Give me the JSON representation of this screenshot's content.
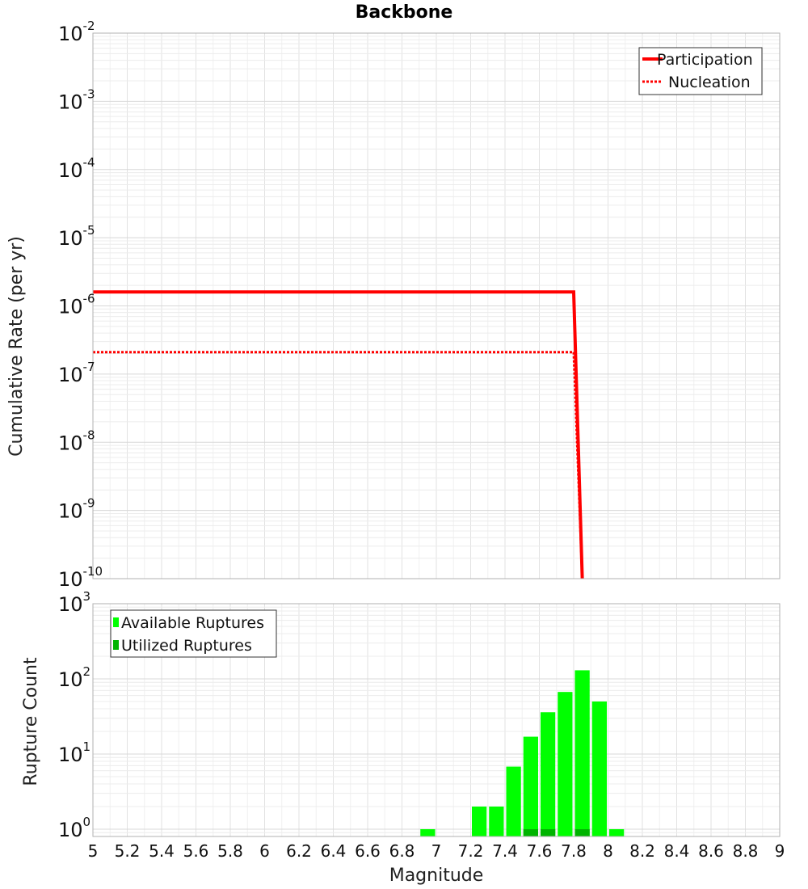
{
  "title": "Backbone",
  "chart_data": [
    {
      "type": "line",
      "title": "Backbone",
      "xlabel": "Magnitude",
      "ylabel": "Cumulative Rate (per yr)",
      "yscale": "log",
      "xlim": [
        5,
        9
      ],
      "ylim": [
        1e-10,
        0.01
      ],
      "ytick_labels": [
        {
          "base": "10",
          "exp": "-10",
          "value": 1e-10
        },
        {
          "base": "10",
          "exp": "-9",
          "value": 1e-09
        },
        {
          "base": "10",
          "exp": "-8",
          "value": 1e-08
        },
        {
          "base": "10",
          "exp": "-7",
          "value": 1e-07
        },
        {
          "base": "10",
          "exp": "-6",
          "value": 1e-06
        },
        {
          "base": "10",
          "exp": "-5",
          "value": 1e-05
        },
        {
          "base": "10",
          "exp": "-4",
          "value": 0.0001
        },
        {
          "base": "10",
          "exp": "-3",
          "value": 0.001
        },
        {
          "base": "10",
          "exp": "-2",
          "value": 0.01
        }
      ],
      "grid": true,
      "legend_position": "top-right",
      "series": [
        {
          "name": "Participation",
          "color": "#ff0000",
          "style": "solid",
          "x": [
            5.0,
            7.8,
            7.85
          ],
          "y": [
            1.6e-06,
            1.6e-06,
            1e-10
          ]
        },
        {
          "name": "Nucleation",
          "color": "#ff0000",
          "style": "dotted",
          "x": [
            5.0,
            7.8,
            7.85
          ],
          "y": [
            2.1e-07,
            2.1e-07,
            1e-10
          ]
        }
      ]
    },
    {
      "type": "bar",
      "xlabel": "Magnitude",
      "ylabel": "Rupture Count",
      "yscale": "log",
      "xlim": [
        5,
        9
      ],
      "ylim": [
        0.8,
        1000
      ],
      "ytick_labels": [
        {
          "base": "10",
          "exp": "0",
          "value": 1
        },
        {
          "base": "10",
          "exp": "1",
          "value": 10
        },
        {
          "base": "10",
          "exp": "2",
          "value": 100
        },
        {
          "base": "10",
          "exp": "3",
          "value": 1000
        }
      ],
      "xtick_labels": [
        "5",
        "5.2",
        "5.4",
        "5.6",
        "5.8",
        "6",
        "6.2",
        "6.4",
        "6.6",
        "6.8",
        "7",
        "7.2",
        "7.4",
        "7.6",
        "7.8",
        "8",
        "8.2",
        "8.4",
        "8.6",
        "8.8",
        "9"
      ],
      "grid": true,
      "legend_position": "top-left",
      "bin_width": 0.1,
      "series": [
        {
          "name": "Available Ruptures",
          "color": "#00ff00",
          "x": [
            6.95,
            7.25,
            7.35,
            7.45,
            7.55,
            7.65,
            7.75,
            7.85,
            7.95,
            8.05
          ],
          "values": [
            1,
            2,
            2,
            6.8,
            17,
            36,
            67,
            130,
            50,
            1
          ]
        },
        {
          "name": "Utilized Ruptures",
          "color": "#00b400",
          "x": [
            7.55,
            7.65,
            7.85
          ],
          "values": [
            1,
            1,
            1
          ]
        }
      ]
    }
  ]
}
